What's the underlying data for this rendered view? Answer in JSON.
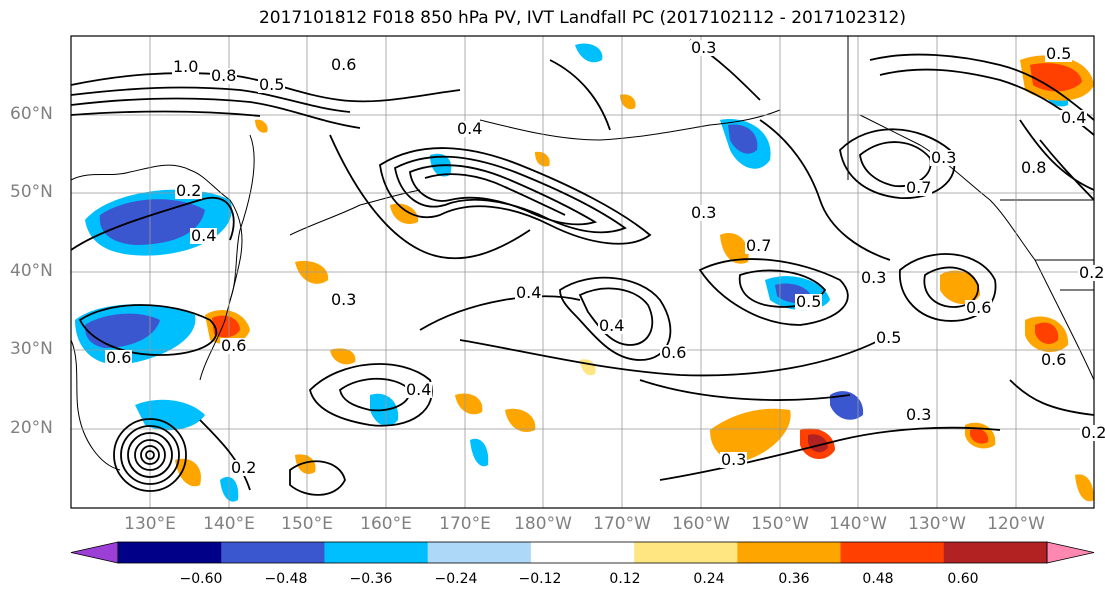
{
  "title": "2017101812 F018 850 hPa PV, IVT Landfall PC (2017102112 - 2017102312)",
  "lat_labels": [
    "60°N",
    "50°N",
    "40°N",
    "30°N",
    "20°N"
  ],
  "lon_labels": [
    "130°E",
    "140°E",
    "150°E",
    "160°E",
    "170°E",
    "180°W",
    "170°W",
    "160°W",
    "150°W",
    "140°W",
    "130°W",
    "120°W"
  ],
  "contour_labels": [
    "1.0",
    "0.8",
    "0.5",
    "0.6",
    "0.4",
    "0.3",
    "0.2",
    "0.4",
    "0.6",
    "0.3",
    "0.7",
    "0.5",
    "0.4",
    "0.6",
    "0.3",
    "0.2",
    "0.7",
    "0.8",
    "0.4",
    "0.3",
    "0.6",
    "0.2",
    "0.5",
    "0.3",
    "0.4",
    "0.3",
    "0.5",
    "0.4",
    "0.3",
    "0.2",
    "0.6",
    "0.6"
  ],
  "colorbar": {
    "ticks": [
      "−0.60",
      "−0.48",
      "−0.36",
      "−0.24",
      "−0.12",
      "0.12",
      "0.24",
      "0.36",
      "0.48",
      "0.60"
    ],
    "colors": [
      "#9b3fd6",
      "#000088",
      "#3b57d0",
      "#00bfff",
      "#add8f8",
      "#ffffff",
      "#ffe680",
      "#ffa500",
      "#ff4000",
      "#b22222",
      "#ff88b0"
    ]
  },
  "colors": {
    "contour": "#000000",
    "grid": "#999999",
    "axis_labels": "#808080"
  }
}
